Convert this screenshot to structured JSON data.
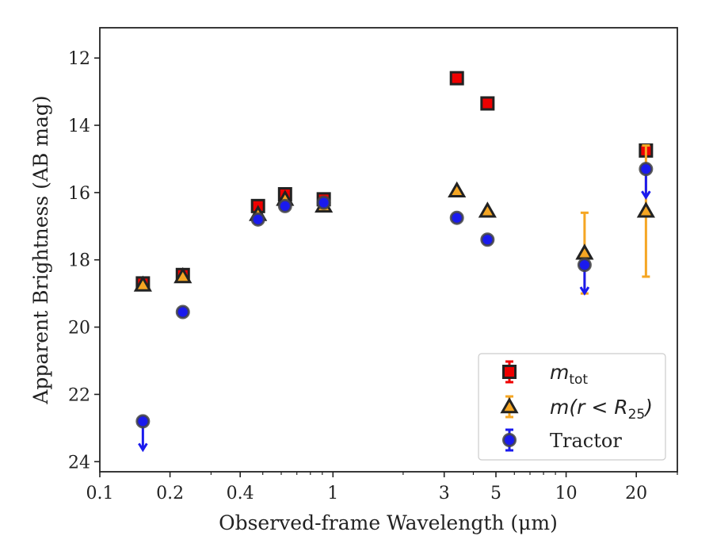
{
  "chart_data": {
    "type": "scatter",
    "xlabel": "Observed-frame Wavelength (μm)",
    "ylabel": "Apparent Brightness (AB mag)",
    "x_scale": "log",
    "xlim": [
      0.1,
      30
    ],
    "ylim": [
      24.3,
      11.1
    ],
    "y_inverted": true,
    "x_ticks": [
      0.1,
      0.2,
      0.4,
      1,
      3,
      5,
      10,
      20
    ],
    "x_tick_labels": [
      "0.1",
      "0.2",
      "0.4",
      "1",
      "3",
      "5",
      "10",
      "20"
    ],
    "y_ticks": [
      12,
      14,
      16,
      18,
      20,
      22,
      24
    ],
    "y_tick_labels": [
      "12",
      "14",
      "16",
      "18",
      "20",
      "22",
      "24"
    ],
    "grid": false,
    "legend_position": "lower-right",
    "series": [
      {
        "name": "m_tot",
        "legend_main": "m",
        "legend_sub": "tot",
        "marker": "square",
        "color": "#ee0000",
        "error_color": "#ee0000",
        "points": [
          {
            "x": 0.153,
            "y": 18.7,
            "err": 0.05
          },
          {
            "x": 0.227,
            "y": 18.45,
            "err": 0.05
          },
          {
            "x": 0.477,
            "y": 16.4,
            "err": 0.05
          },
          {
            "x": 0.623,
            "y": 16.05,
            "err": 0.05
          },
          {
            "x": 0.913,
            "y": 16.2,
            "err": 0.05
          },
          {
            "x": 3.4,
            "y": 12.6,
            "err": 0.0
          },
          {
            "x": 4.6,
            "y": 13.35,
            "err": 0.0
          },
          {
            "x": 22.0,
            "y": 14.75,
            "err": 0.15
          }
        ]
      },
      {
        "name": "m(r<R25)",
        "legend_main": "m(r < R",
        "legend_sub": "25",
        "legend_close": ")",
        "marker": "triangle",
        "color": "#f5a623",
        "error_color": "#f5a623",
        "points": [
          {
            "x": 0.153,
            "y": 18.75,
            "err": 0.05
          },
          {
            "x": 0.227,
            "y": 18.5,
            "err": 0.05
          },
          {
            "x": 0.477,
            "y": 16.65,
            "err": 0.05
          },
          {
            "x": 0.623,
            "y": 16.2,
            "err": 0.05
          },
          {
            "x": 0.913,
            "y": 16.4,
            "err": 0.05
          },
          {
            "x": 3.4,
            "y": 15.95,
            "err": 0.0
          },
          {
            "x": 4.6,
            "y": 16.55,
            "err": 0.0
          },
          {
            "x": 12.0,
            "y": 17.8,
            "err": 1.2
          },
          {
            "x": 22.0,
            "y": 16.55,
            "err": 1.95
          }
        ]
      },
      {
        "name": "Tractor",
        "legend_main": "Tractor",
        "marker": "circle",
        "color": "#1a1aee",
        "error_color": "#1a1aee",
        "points": [
          {
            "x": 0.153,
            "y": 22.8,
            "upper_limit": true
          },
          {
            "x": 0.227,
            "y": 19.55,
            "err": 0.05
          },
          {
            "x": 0.477,
            "y": 16.8,
            "err": 0.05
          },
          {
            "x": 0.623,
            "y": 16.4,
            "err": 0.05
          },
          {
            "x": 0.913,
            "y": 16.3,
            "err": 0.05
          },
          {
            "x": 3.4,
            "y": 16.75,
            "err": 0.0
          },
          {
            "x": 4.6,
            "y": 17.4,
            "err": 0.0
          },
          {
            "x": 12.0,
            "y": 18.15,
            "upper_limit": true
          },
          {
            "x": 22.0,
            "y": 15.3,
            "upper_limit": true
          }
        ]
      }
    ]
  }
}
